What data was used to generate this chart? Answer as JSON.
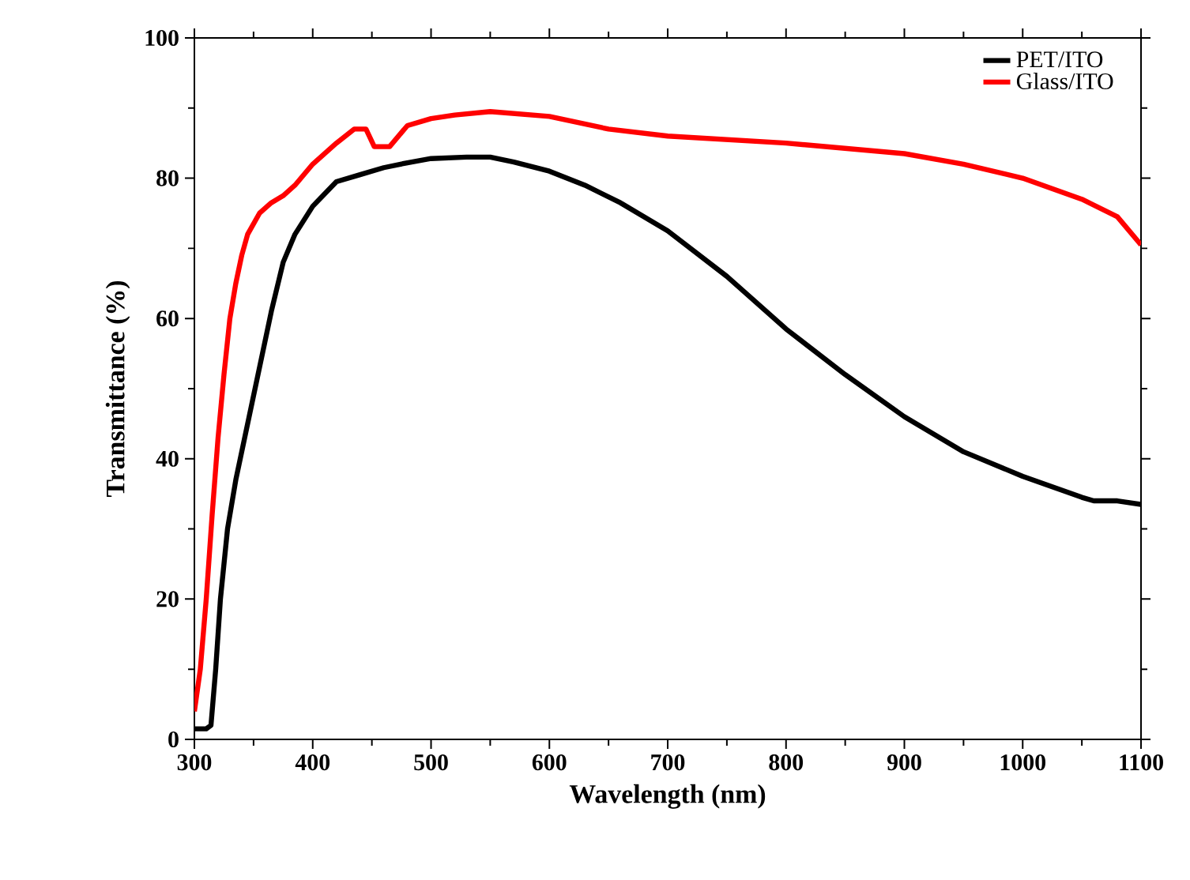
{
  "chart_data": {
    "type": "line",
    "xlabel": "Wavelength (nm)",
    "ylabel": "Transmittance (%)",
    "xlim": [
      300,
      1100
    ],
    "ylim": [
      0,
      100
    ],
    "xticks": [
      300,
      400,
      500,
      600,
      700,
      800,
      900,
      1000,
      1100
    ],
    "yticks": [
      0,
      20,
      40,
      60,
      80,
      100
    ],
    "grid": false,
    "legend": "top right",
    "line_style": "solid",
    "marker": "none",
    "series": [
      {
        "name": "PET/ITO",
        "color": "#000000",
        "x": [
          300,
          310,
          314,
          318,
          322,
          328,
          335,
          345,
          355,
          365,
          375,
          385,
          400,
          420,
          440,
          460,
          480,
          500,
          530,
          550,
          570,
          600,
          630,
          660,
          700,
          750,
          800,
          850,
          900,
          950,
          1000,
          1050,
          1060,
          1080,
          1100
        ],
        "values": [
          1.5,
          1.5,
          2,
          10,
          20,
          30,
          37,
          45,
          53,
          61,
          68,
          72,
          76,
          79.5,
          80.5,
          81.5,
          82.2,
          82.8,
          83,
          83,
          82.3,
          81,
          79,
          76.5,
          72.5,
          66,
          58.5,
          52,
          46,
          41,
          37.5,
          34.5,
          34,
          34,
          33.5
        ]
      },
      {
        "name": "Glass/ITO",
        "color": "#ff0000",
        "x": [
          300,
          305,
          310,
          315,
          320,
          325,
          330,
          335,
          340,
          345,
          355,
          365,
          375,
          385,
          400,
          420,
          435,
          445,
          452,
          465,
          480,
          500,
          520,
          550,
          600,
          650,
          700,
          800,
          900,
          950,
          1000,
          1050,
          1080,
          1100
        ],
        "values": [
          4,
          10,
          20,
          32,
          43,
          52,
          60,
          65,
          69,
          72,
          75,
          76.5,
          77.5,
          79,
          82,
          85,
          87,
          87,
          84.5,
          84.5,
          87.5,
          88.5,
          89,
          89.5,
          88.8,
          87,
          86,
          85,
          83.5,
          82,
          80,
          77,
          74.5,
          70.5
        ]
      }
    ]
  }
}
